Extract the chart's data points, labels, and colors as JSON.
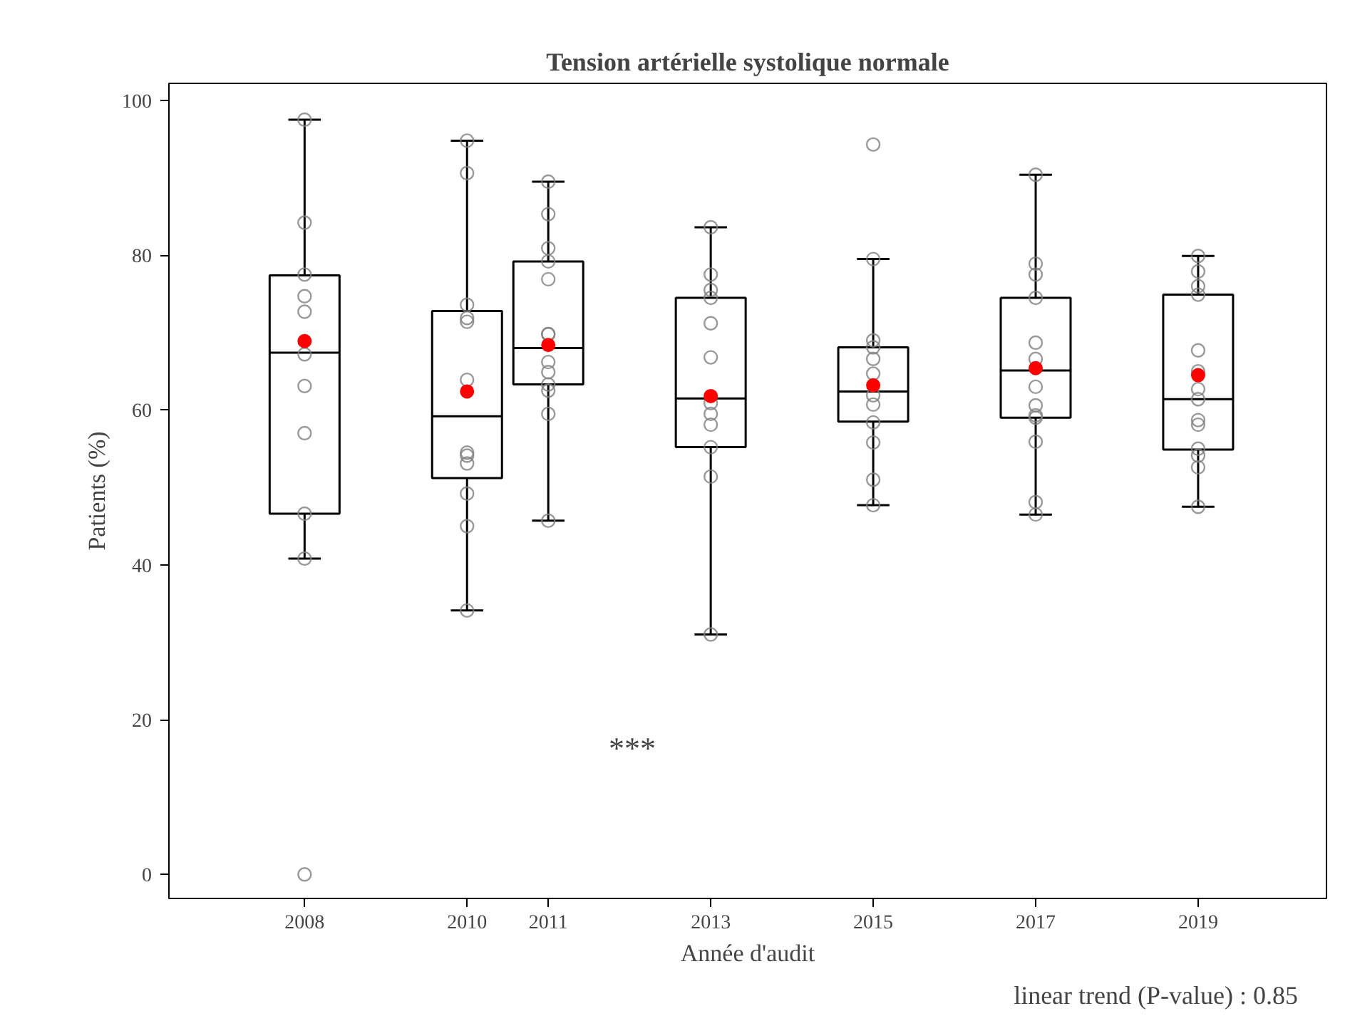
{
  "chart_data": {
    "type": "box",
    "title": "Tension artérielle systolique normale",
    "xlabel": "Année d'audit",
    "ylabel": "Patients (%)",
    "x": [
      2008,
      2010,
      2011,
      2013,
      2015,
      2017,
      2019
    ],
    "xlim": [
      2006.33,
      2020.58
    ],
    "xticks": [
      2008,
      2010,
      2011,
      2013,
      2015,
      2017,
      2019
    ],
    "ylim": [
      -3.1,
      102.2
    ],
    "yticks": [
      0,
      20,
      40,
      60,
      80,
      100
    ],
    "grid": false,
    "annotations": [
      "***",
      "linear trend (P-value) : 0.85"
    ],
    "series": [
      {
        "color": "#000000",
        "boxes": [
          {
            "low": 40.8,
            "q1": 46.6,
            "median": 67.4,
            "q3": 77.4,
            "high": 97.5,
            "mean": 68.9
          },
          {
            "low": 34.1,
            "q1": 51.2,
            "median": 59.2,
            "q3": 72.8,
            "high": 94.8,
            "mean": 62.4
          },
          {
            "low": 45.7,
            "q1": 63.3,
            "median": 68.0,
            "q3": 79.2,
            "high": 89.5,
            "mean": 68.4
          },
          {
            "low": 31.0,
            "q1": 55.2,
            "median": 61.5,
            "q3": 74.5,
            "high": 83.6,
            "mean": 61.8
          },
          {
            "low": 47.7,
            "q1": 58.5,
            "median": 62.4,
            "q3": 68.1,
            "high": 79.5,
            "mean": 63.2
          },
          {
            "low": 46.5,
            "q1": 59.0,
            "median": 65.1,
            "q3": 74.5,
            "high": 90.4,
            "mean": 65.4
          },
          {
            "low": 47.5,
            "q1": 54.9,
            "median": 61.4,
            "q3": 74.9,
            "high": 79.9,
            "mean": 64.5
          }
        ]
      },
      {
        "type": "scatter",
        "color": "#808080",
        "marker": "circle",
        "x": [
          2008,
          2008,
          2008,
          2008,
          2008,
          2008,
          2008,
          2008,
          2008,
          2008,
          2008,
          2010,
          2010,
          2010,
          2010,
          2010,
          2010,
          2010,
          2010,
          2010,
          2010,
          2010,
          2010,
          2011,
          2011,
          2011,
          2011,
          2011,
          2011,
          2011,
          2011,
          2011,
          2011,
          2011,
          2011,
          2011,
          2013,
          2013,
          2013,
          2013,
          2013,
          2013,
          2013,
          2013,
          2013,
          2013,
          2013,
          2013,
          2015,
          2015,
          2015,
          2015,
          2015,
          2015,
          2015,
          2015,
          2015,
          2015,
          2015,
          2015,
          2017,
          2017,
          2017,
          2017,
          2017,
          2017,
          2017,
          2017,
          2017,
          2017,
          2017,
          2017,
          2017,
          2019,
          2019,
          2019,
          2019,
          2019,
          2019,
          2019,
          2019,
          2019,
          2019,
          2019,
          2019,
          2019,
          2019
        ],
        "values": [
          97.5,
          84.2,
          77.5,
          74.7,
          72.7,
          67.2,
          63.1,
          57.0,
          46.6,
          40.8,
          0,
          94.8,
          90.6,
          73.6,
          71.9,
          71.4,
          63.9,
          54.5,
          54.1,
          53.1,
          49.2,
          45.0,
          34.1,
          89.5,
          85.3,
          80.9,
          79.2,
          76.9,
          69.8,
          69.8,
          66.2,
          64.9,
          63.3,
          62.5,
          59.5,
          45.7,
          83.6,
          77.5,
          75.5,
          74.5,
          71.2,
          66.8,
          60.9,
          59.5,
          58.1,
          55.2,
          51.4,
          31.0,
          94.3,
          79.5,
          69.0,
          68.1,
          66.6,
          64.7,
          61.9,
          60.7,
          58.4,
          55.8,
          51.0,
          47.7,
          90.4,
          78.9,
          77.5,
          74.5,
          68.7,
          66.6,
          63.0,
          60.6,
          59.3,
          59.0,
          55.9,
          48.1,
          46.5,
          79.9,
          77.9,
          76.0,
          74.9,
          67.7,
          65.0,
          62.7,
          61.4,
          58.7,
          58.1,
          55.0,
          54.1,
          52.6,
          47.5
        ]
      }
    ]
  }
}
